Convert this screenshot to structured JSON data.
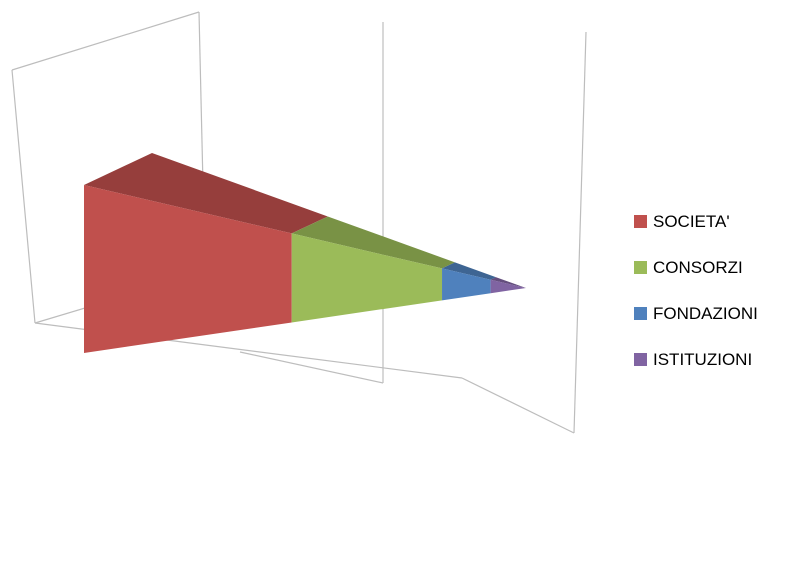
{
  "chart_data": {
    "type": "area",
    "variant": "3d-pyramid",
    "title": "",
    "xlabel": "",
    "ylabel": "",
    "grid": true,
    "legend_position": "right",
    "series": [
      {
        "name": "SOCIETA'",
        "value": 47,
        "color": "#c0504d"
      },
      {
        "name": "CONSORZI",
        "value": 34,
        "color": "#9bbb59"
      },
      {
        "name": "FONDAZIONI",
        "value": 11,
        "color": "#4f81bd"
      },
      {
        "name": "ISTITUZIONI",
        "value": 8,
        "color": "#8064a2"
      }
    ]
  }
}
